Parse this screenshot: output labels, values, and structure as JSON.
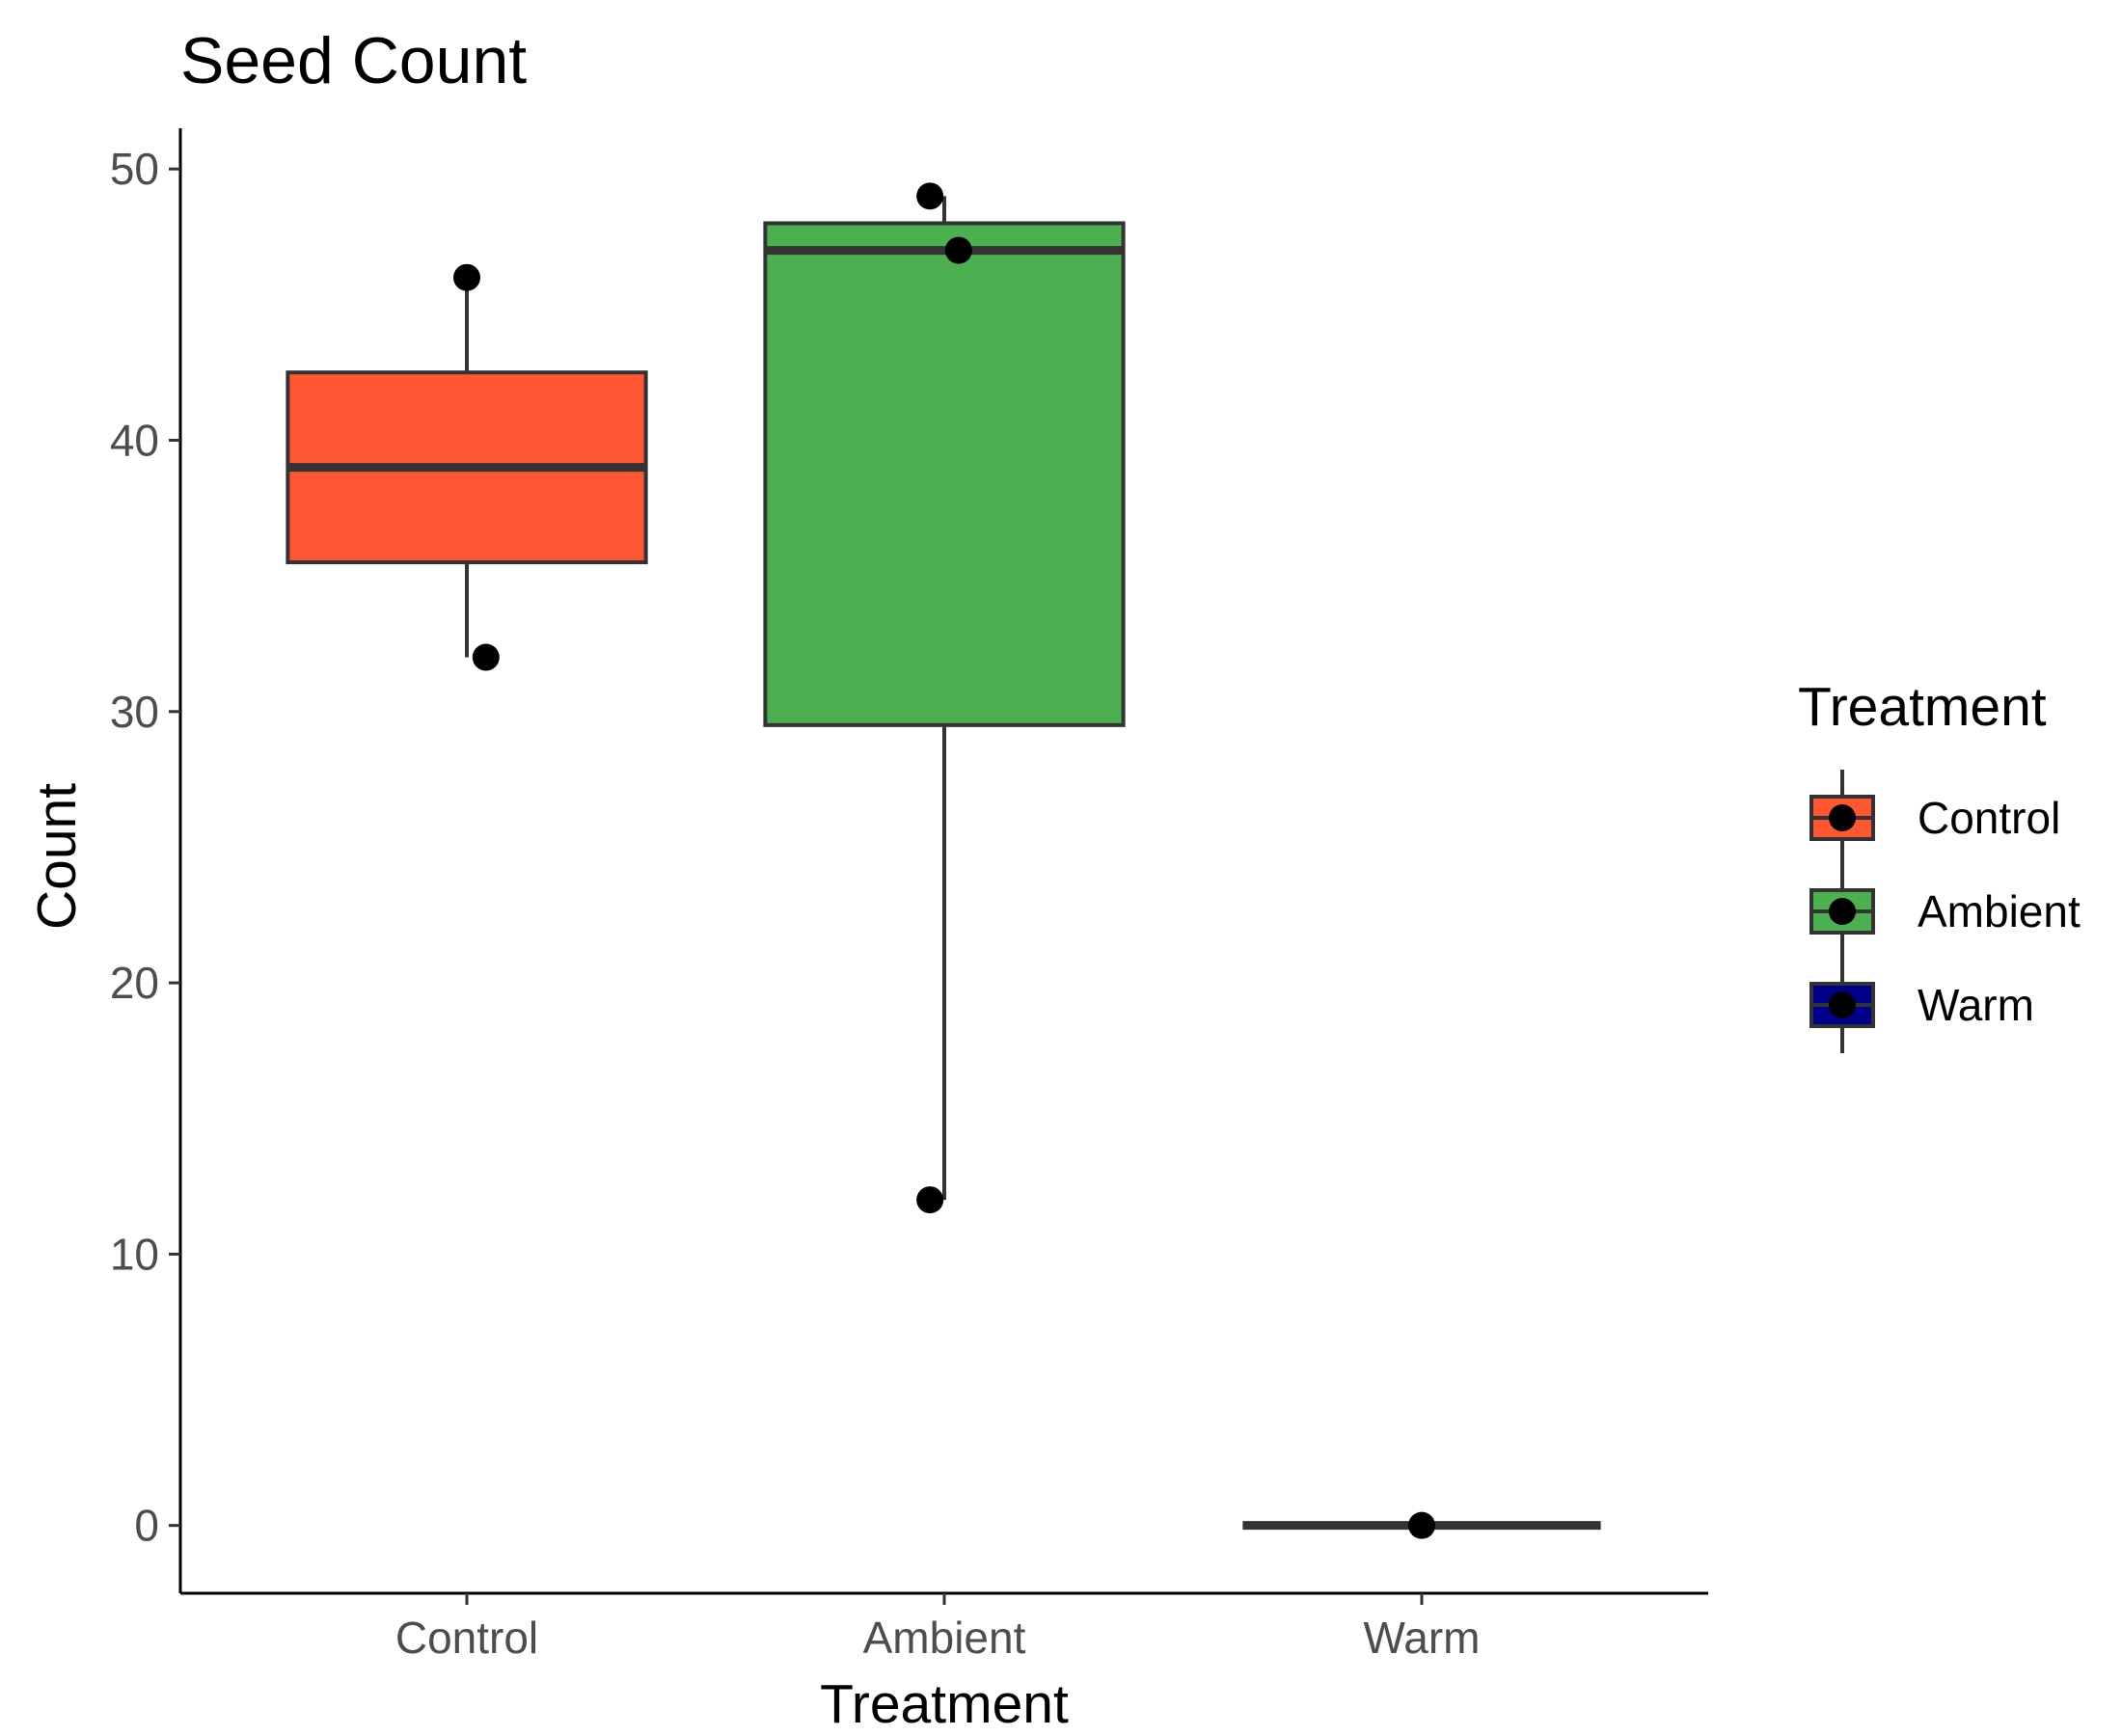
{
  "chart_data": {
    "type": "boxplot",
    "title": "Seed Count",
    "xlabel": "Treatment",
    "ylabel": "Count",
    "ylim": [
      -2.5,
      51.5
    ],
    "yticks": [
      0,
      10,
      20,
      30,
      40,
      50
    ],
    "grid": false,
    "categories": [
      "Control",
      "Ambient",
      "Warm"
    ],
    "boxes": [
      {
        "category": "Control",
        "whisker_low": 32,
        "q1": 35.5,
        "median": 39,
        "q3": 42.5,
        "whisker_high": 46,
        "fill": "#FF5733"
      },
      {
        "category": "Ambient",
        "whisker_low": 12,
        "q1": 29.5,
        "median": 47,
        "q3": 48,
        "whisker_high": 49,
        "fill": "#4CAF50"
      },
      {
        "category": "Warm",
        "whisker_low": 0,
        "q1": 0,
        "median": 0,
        "q3": 0,
        "whisker_high": 0,
        "fill": "#00008B"
      }
    ],
    "points": [
      {
        "category": "Control",
        "jitter": 0.0,
        "y": 46
      },
      {
        "category": "Control",
        "jitter": 0.04,
        "y": 32
      },
      {
        "category": "Ambient",
        "jitter": -0.03,
        "y": 49
      },
      {
        "category": "Ambient",
        "jitter": 0.03,
        "y": 47
      },
      {
        "category": "Ambient",
        "jitter": -0.03,
        "y": 12
      },
      {
        "category": "Warm",
        "jitter": 0.0,
        "y": 0
      }
    ],
    "legend": {
      "title": "Treatment",
      "position": "right",
      "entries": [
        {
          "label": "Control",
          "fill": "#FF5733"
        },
        {
          "label": "Ambient",
          "fill": "#4CAF50"
        },
        {
          "label": "Warm",
          "fill": "#00008B"
        }
      ]
    }
  }
}
